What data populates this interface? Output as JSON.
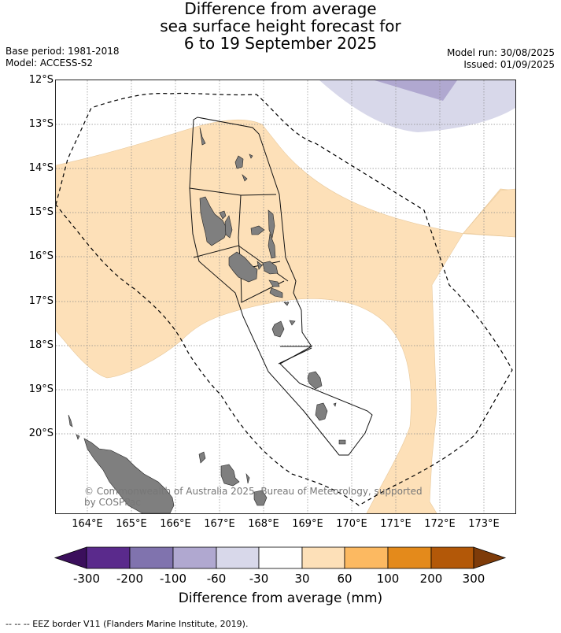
{
  "title": {
    "line1": "Difference from average",
    "line2": "sea surface height forecast for",
    "line3": "6 to 19 September 2025"
  },
  "meta": {
    "base_period": "Base period: 1981-2018",
    "model": "Model: ACCESS-S2",
    "model_run": "Model run: 30/08/2025",
    "issued": "Issued: 01/09/2025"
  },
  "latitude_labels": [
    "12°S",
    "13°S",
    "14°S",
    "15°S",
    "16°S",
    "17°S",
    "18°S",
    "19°S",
    "20°S"
  ],
  "longitude_labels": [
    "164°E",
    "165°E",
    "166°E",
    "167°E",
    "168°E",
    "169°E",
    "170°E",
    "171°E",
    "172°E",
    "173°E"
  ],
  "copyright": "© Commonwealth of Australia 2025, Bureau of Meteorology, supported by COSPPac",
  "colorbar": {
    "title": "Difference from average (mm)",
    "tick_labels": [
      "-300",
      "-200",
      "-100",
      "-60",
      "-30",
      "30",
      "60",
      "100",
      "200",
      "300"
    ],
    "colors": [
      "#3b0f5c",
      "#5a2a8c",
      "#8073ae",
      "#b0a8d0",
      "#d8d8ea",
      "#ffffff",
      "#fde0b8",
      "#fcb961",
      "#e48a1b",
      "#b35808",
      "#7e3b09"
    ]
  },
  "footnote": "--  --  -- EEZ border V11 (Flanders Marine Institute, 2019)."
}
